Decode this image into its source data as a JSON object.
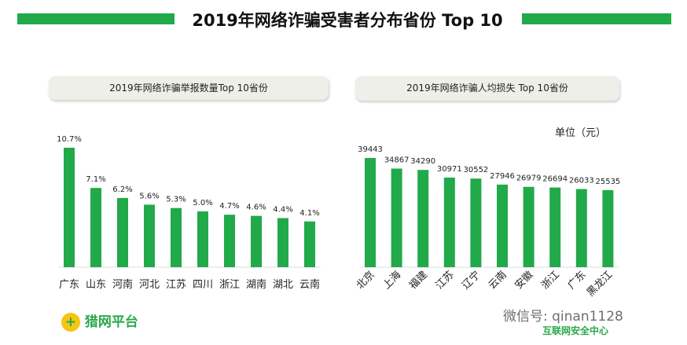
{
  "title": "2019年网络诈骗受害者分布省份 Top 10",
  "accent": "#21a94a",
  "chart_data": [
    {
      "type": "bar",
      "title": "2019年网络诈骗举报数量Top  10省份",
      "categories": [
        "广东",
        "山东",
        "河南",
        "河北",
        "江苏",
        "四川",
        "浙江",
        "湖南",
        "湖北",
        "云南"
      ],
      "values": [
        10.7,
        7.1,
        6.2,
        5.6,
        5.3,
        5.0,
        4.7,
        4.6,
        4.4,
        4.1
      ],
      "labels": [
        "10.7%",
        "7.1%",
        "6.2%",
        "5.6%",
        "5.3%",
        "5.0%",
        "4.7%",
        "4.6%",
        "4.4%",
        "4.1%"
      ],
      "unit": "%",
      "ylim": [
        0,
        10.7
      ],
      "grid": false,
      "color": "#21a94a"
    },
    {
      "type": "bar",
      "title": "2019年网络诈骗人均损失  Top 10省份",
      "unit_label": "单位（元）",
      "categories": [
        "北京",
        "上海",
        "福建",
        "江苏",
        "辽宁",
        "云南",
        "安徽",
        "浙江",
        "广东",
        "黑龙江"
      ],
      "values": [
        39443,
        34867,
        34290,
        30971,
        30552,
        27946,
        26979,
        26694,
        26033,
        25535
      ],
      "ylim": [
        -7700,
        39443
      ],
      "grid": false,
      "color": "#21a94a"
    }
  ],
  "logos": {
    "left": "猎网平台",
    "right": "互联网安全中心",
    "watermark": "微信号: qinan1128"
  }
}
